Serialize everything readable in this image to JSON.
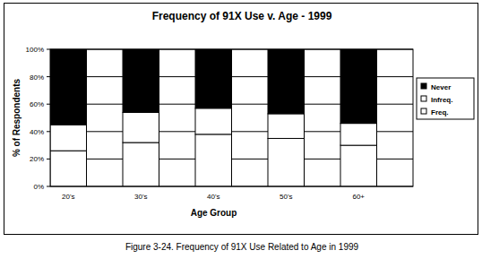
{
  "chart_data": {
    "type": "bar",
    "stacked": true,
    "title": "Frequency of 91X Use v. Age - 1999",
    "x_label": "Age Group",
    "y_label": "% of Respondents",
    "caption": "Figure 3-24. Frequency of 91X Use Related to Age in 1999",
    "categories": [
      "20's",
      "30's",
      "40's",
      "50's",
      "60+"
    ],
    "series": [
      {
        "name": "Freq.",
        "color": "#ffffff",
        "values": [
          26,
          32,
          38,
          35,
          30
        ]
      },
      {
        "name": "Infreq.",
        "color": "#ffffff",
        "values": [
          19,
          22,
          19,
          18,
          16
        ]
      },
      {
        "name": "Never",
        "color": "#000000",
        "values": [
          55,
          46,
          43,
          47,
          54
        ]
      }
    ],
    "ylim": [
      0,
      100
    ],
    "yticks": [
      {
        "value": 0,
        "label": "0%"
      },
      {
        "value": 20,
        "label": "20%"
      },
      {
        "value": 40,
        "label": "40%"
      },
      {
        "value": 60,
        "label": "60%"
      },
      {
        "value": 80,
        "label": "80%"
      },
      {
        "value": 100,
        "label": "100%"
      }
    ],
    "grid": true,
    "legend": "right"
  }
}
